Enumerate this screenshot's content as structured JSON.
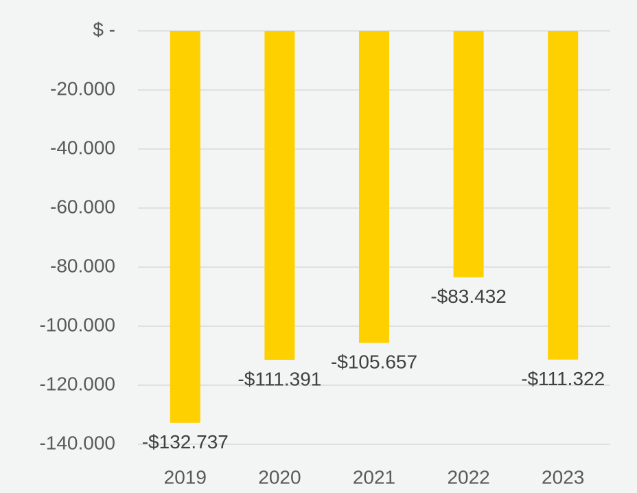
{
  "chart_data": {
    "type": "bar",
    "categories": [
      "2019",
      "2020",
      "2021",
      "2022",
      "2023"
    ],
    "values": [
      -132737,
      -111391,
      -105657,
      -83432,
      -111322
    ],
    "value_labels": [
      "-$132.737",
      "-$111.391",
      "-$105.657",
      "-$83.432",
      "-$111.322"
    ],
    "color": "#ffd000",
    "ylim": [
      -140000,
      0
    ],
    "yticks": [
      {
        "value": 0,
        "label": "$ -"
      },
      {
        "value": -20000,
        "label": "-20.000"
      },
      {
        "value": -40000,
        "label": "-40.000"
      },
      {
        "value": -60000,
        "label": "-60.000"
      },
      {
        "value": -80000,
        "label": "-80.000"
      },
      {
        "value": -100000,
        "label": "-100.000"
      },
      {
        "value": -120000,
        "label": "-120.000"
      },
      {
        "value": -140000,
        "label": "-140.000"
      }
    ],
    "grid": true
  }
}
